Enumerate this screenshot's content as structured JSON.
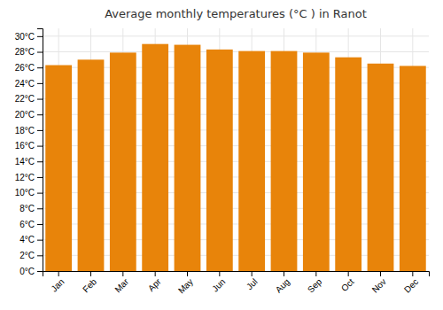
{
  "chart_data": {
    "type": "bar",
    "title": "Average monthly temperatures (°C ) in Ranot",
    "categories": [
      "Jan",
      "Feb",
      "Mar",
      "Apr",
      "May",
      "Jun",
      "Jul",
      "Aug",
      "Sep",
      "Oct",
      "Nov",
      "Dec"
    ],
    "values": [
      26.3,
      27.0,
      27.9,
      29.0,
      28.9,
      28.3,
      28.1,
      28.1,
      27.9,
      27.3,
      26.5,
      26.2
    ],
    "color": "#E8840A",
    "ylim": [
      0,
      31
    ],
    "yticks": [
      {
        "value": 0,
        "label": "0°C"
      },
      {
        "value": 2,
        "label": "2°C"
      },
      {
        "value": 4,
        "label": "4°C"
      },
      {
        "value": 6,
        "label": "6°C"
      },
      {
        "value": 8,
        "label": "8°C"
      },
      {
        "value": 10,
        "label": "10°C"
      },
      {
        "value": 12,
        "label": "12°C"
      },
      {
        "value": 14,
        "label": "14°C"
      },
      {
        "value": 16,
        "label": "16°C"
      },
      {
        "value": 18,
        "label": "18°C"
      },
      {
        "value": 20,
        "label": "20°C"
      },
      {
        "value": 22,
        "label": "22°C"
      },
      {
        "value": 24,
        "label": "24°C"
      },
      {
        "value": 26,
        "label": "26°C"
      },
      {
        "value": 28,
        "label": "28°C"
      },
      {
        "value": 30,
        "label": "30°C"
      }
    ],
    "grid": true
  }
}
